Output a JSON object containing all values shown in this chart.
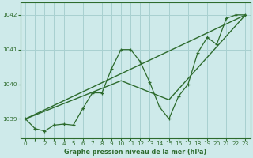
{
  "background_color": "#ceeaea",
  "grid_color": "#a8d0d0",
  "line_color": "#2d6b2d",
  "text_color": "#2d6b2d",
  "xlabel": "Graphe pression niveau de la mer (hPa)",
  "ylim": [
    1038.45,
    1042.35
  ],
  "xlim": [
    -0.5,
    23.5
  ],
  "yticks": [
    1039,
    1040,
    1041,
    1042
  ],
  "xticks": [
    0,
    1,
    2,
    3,
    4,
    5,
    6,
    7,
    8,
    9,
    10,
    11,
    12,
    13,
    14,
    15,
    16,
    17,
    18,
    19,
    20,
    21,
    22,
    23
  ],
  "series1_x": [
    0,
    1,
    2,
    3,
    4,
    5,
    6,
    7,
    8,
    9,
    10,
    11,
    12,
    13,
    14,
    15,
    16,
    17,
    18,
    19,
    20,
    21,
    22,
    23
  ],
  "series1_y": [
    1039.0,
    1038.72,
    1038.65,
    1038.82,
    1038.85,
    1038.82,
    1039.3,
    1039.75,
    1039.75,
    1040.45,
    1041.0,
    1041.0,
    1040.65,
    1040.05,
    1039.35,
    1039.0,
    1039.65,
    1040.0,
    1040.9,
    1041.35,
    1041.15,
    1041.9,
    1042.0,
    1042.0
  ],
  "trend1_x": [
    0,
    23
  ],
  "trend1_y": [
    1039.0,
    1042.0
  ],
  "trend2_x": [
    0,
    10,
    15,
    23
  ],
  "trend2_y": [
    1039.0,
    1040.1,
    1039.55,
    1042.0
  ]
}
